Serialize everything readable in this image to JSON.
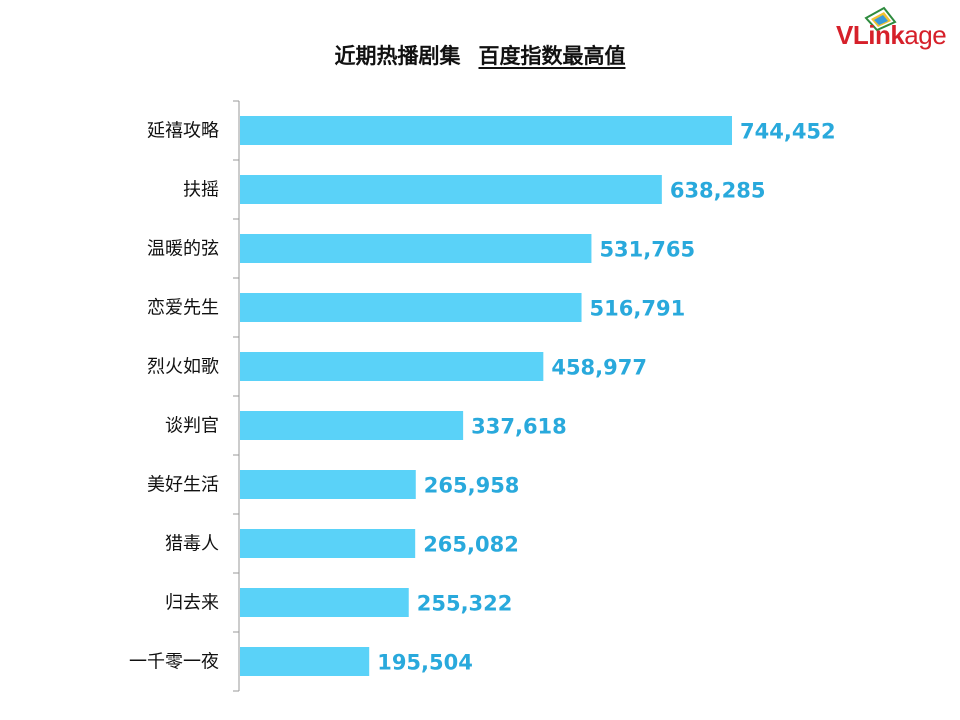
{
  "header": {
    "title_part1": "近期热播剧集",
    "title_part2": "百度指数最高值"
  },
  "logo": {
    "text_main": "VLink",
    "text_tail": "age",
    "color": "#d6202a"
  },
  "colors": {
    "bar": "#5ad2f8",
    "value_label": "#29a9dc",
    "axis": "#9a9a9a"
  },
  "chart_data": {
    "type": "bar",
    "orientation": "horizontal",
    "categories": [
      "延禧攻略",
      "扶摇",
      "温暖的弦",
      "恋爱先生",
      "烈火如歌",
      "谈判官",
      "美好生活",
      "猎毒人",
      "归去来",
      "一千零一夜"
    ],
    "values": [
      744452,
      638285,
      531765,
      516791,
      458977,
      337618,
      265958,
      265082,
      255322,
      195504
    ],
    "value_labels": [
      "744,452",
      "638,285",
      "531,765",
      "516,791",
      "458,977",
      "337,618",
      "265,958",
      "265,082",
      "255,322",
      "195,504"
    ],
    "xlim": [
      0,
      744452
    ],
    "grid": false,
    "legend": "none"
  }
}
